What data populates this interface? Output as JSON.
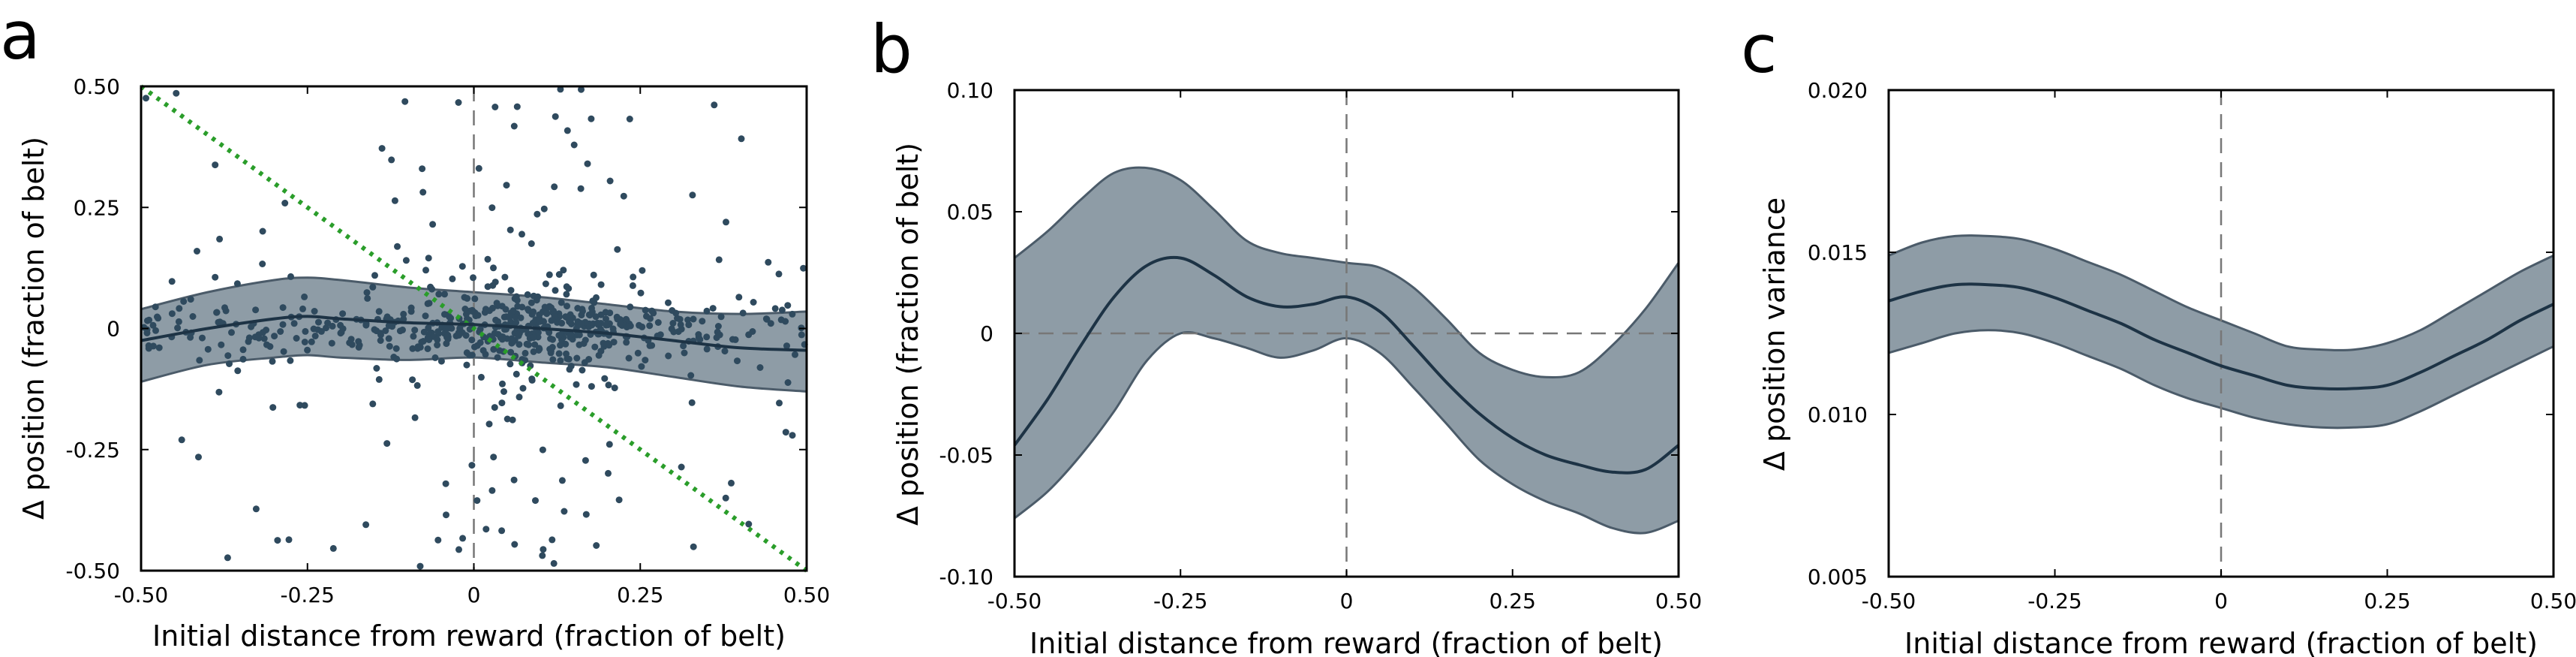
{
  "colors": {
    "band_fill": "#8e9ca6",
    "band_edge": "#4b5b69",
    "mean_line": "#1d3345",
    "points": "#2f4a5e",
    "diagonal": "#2a9d2a",
    "reference_lines": "#777777"
  },
  "chart_data": [
    {
      "panel": "a",
      "type": "scatter",
      "title": "",
      "xlabel": "Initial distance from reward (fraction of belt)",
      "ylabel": "Δ position (fraction of belt)",
      "xlim": [
        -0.5,
        0.5
      ],
      "ylim": [
        -0.5,
        0.5
      ],
      "xticks": [
        -0.5,
        -0.25,
        0,
        0.25,
        0.5
      ],
      "xtick_labels": [
        "-0.50",
        "-0.25",
        "0",
        "0.25",
        "0.50"
      ],
      "yticks": [
        -0.5,
        -0.25,
        0,
        0.25,
        0.5
      ],
      "ytick_labels": [
        "-0.50",
        "-0.25",
        "0",
        "0.25",
        "0.50"
      ],
      "grid": false,
      "reference_lines": {
        "vertical_x": 0
      },
      "diagonal_line": {
        "from": [
          -0.5,
          0.5
        ],
        "to": [
          0.5,
          -0.5
        ],
        "style": "dotted"
      },
      "mean_curve": {
        "x": [
          -0.5,
          -0.4,
          -0.3,
          -0.25,
          -0.2,
          -0.1,
          0,
          0.1,
          0.2,
          0.3,
          0.4,
          0.5
        ],
        "y": [
          -0.025,
          0.0,
          0.02,
          0.025,
          0.02,
          0.012,
          0.008,
          0.0,
          -0.01,
          -0.025,
          -0.04,
          -0.045
        ]
      },
      "band": {
        "x": [
          -0.5,
          -0.4,
          -0.3,
          -0.25,
          -0.2,
          -0.1,
          0,
          0.1,
          0.2,
          0.3,
          0.4,
          0.5
        ],
        "upper": [
          0.04,
          0.075,
          0.1,
          0.105,
          0.1,
          0.085,
          0.075,
          0.065,
          0.05,
          0.035,
          0.03,
          0.035
        ],
        "lower": [
          -0.11,
          -0.075,
          -0.06,
          -0.055,
          -0.06,
          -0.065,
          -0.06,
          -0.07,
          -0.08,
          -0.1,
          -0.12,
          -0.13
        ]
      },
      "scatter": {
        "n_points": 700,
        "x_range": [
          -0.5,
          0.5
        ],
        "y_range": [
          -0.5,
          0.5
        ],
        "concentration": "dense around Δ position 0, densest near 0 to 0.25 on x"
      }
    },
    {
      "panel": "b",
      "type": "line",
      "title": "",
      "xlabel": "Initial distance from reward (fraction of belt)",
      "ylabel": "Δ position (fraction of belt)",
      "xlim": [
        -0.5,
        0.5
      ],
      "ylim": [
        -0.1,
        0.1
      ],
      "xticks": [
        -0.5,
        -0.25,
        0,
        0.25,
        0.5
      ],
      "xtick_labels": [
        "-0.50",
        "-0.25",
        "0",
        "0.25",
        "0.50"
      ],
      "yticks": [
        -0.1,
        -0.05,
        0,
        0.05,
        0.1
      ],
      "ytick_labels": [
        "-0.10",
        "-0.05",
        "0",
        "0.05",
        "0.10"
      ],
      "grid": false,
      "reference_lines": {
        "vertical_x": 0,
        "horizontal_y": 0
      },
      "x": [
        -0.5,
        -0.45,
        -0.4,
        -0.35,
        -0.3,
        -0.25,
        -0.2,
        -0.15,
        -0.1,
        -0.05,
        0,
        0.05,
        0.1,
        0.15,
        0.2,
        0.25,
        0.3,
        0.35,
        0.4,
        0.45,
        0.5
      ],
      "mean": [
        -0.046,
        -0.027,
        -0.005,
        0.015,
        0.028,
        0.031,
        0.024,
        0.015,
        0.011,
        0.012,
        0.015,
        0.009,
        -0.005,
        -0.02,
        -0.033,
        -0.043,
        -0.05,
        -0.054,
        -0.057,
        -0.056,
        -0.046
      ],
      "upper": [
        0.031,
        0.042,
        0.055,
        0.066,
        0.068,
        0.063,
        0.051,
        0.038,
        0.033,
        0.031,
        0.029,
        0.027,
        0.019,
        0.006,
        -0.008,
        -0.015,
        -0.018,
        -0.016,
        -0.005,
        0.01,
        0.029
      ],
      "lower": [
        -0.076,
        -0.065,
        -0.05,
        -0.032,
        -0.011,
        0.0,
        -0.002,
        -0.006,
        -0.01,
        -0.007,
        -0.002,
        -0.008,
        -0.022,
        -0.037,
        -0.052,
        -0.062,
        -0.069,
        -0.074,
        -0.08,
        -0.082,
        -0.077
      ]
    },
    {
      "panel": "c",
      "type": "line",
      "title": "",
      "xlabel": "Initial distance from reward (fraction of belt)",
      "ylabel": "Δ position variance",
      "xlim": [
        -0.5,
        0.5
      ],
      "ylim": [
        0.005,
        0.02
      ],
      "xticks": [
        -0.5,
        -0.25,
        0,
        0.25,
        0.5
      ],
      "xtick_labels": [
        "-0.50",
        "-0.25",
        "0",
        "0.25",
        "0.50"
      ],
      "yticks": [
        0.005,
        0.01,
        0.015,
        0.02
      ],
      "ytick_labels": [
        "0.005",
        "0.010",
        "0.015",
        "0.020"
      ],
      "grid": false,
      "reference_lines": {
        "vertical_x": 0
      },
      "x": [
        -0.5,
        -0.45,
        -0.4,
        -0.35,
        -0.3,
        -0.25,
        -0.2,
        -0.15,
        -0.1,
        -0.05,
        0,
        0.05,
        0.1,
        0.15,
        0.2,
        0.25,
        0.3,
        0.35,
        0.4,
        0.45,
        0.5
      ],
      "mean": [
        0.0135,
        0.0138,
        0.014,
        0.014,
        0.0139,
        0.0136,
        0.0132,
        0.0128,
        0.0123,
        0.0119,
        0.0115,
        0.0112,
        0.0109,
        0.0108,
        0.0108,
        0.0109,
        0.0113,
        0.0118,
        0.0123,
        0.0129,
        0.0134
      ],
      "upper": [
        0.0149,
        0.0153,
        0.0155,
        0.0155,
        0.0154,
        0.0151,
        0.0147,
        0.0143,
        0.0138,
        0.0133,
        0.0129,
        0.0125,
        0.0121,
        0.012,
        0.012,
        0.0122,
        0.0126,
        0.0132,
        0.0138,
        0.0144,
        0.0149
      ],
      "lower": [
        0.0119,
        0.0122,
        0.0125,
        0.0126,
        0.0125,
        0.0122,
        0.0118,
        0.0114,
        0.0109,
        0.0105,
        0.0102,
        0.0099,
        0.0097,
        0.0096,
        0.0096,
        0.0097,
        0.0101,
        0.0106,
        0.0111,
        0.0116,
        0.0121
      ]
    }
  ]
}
